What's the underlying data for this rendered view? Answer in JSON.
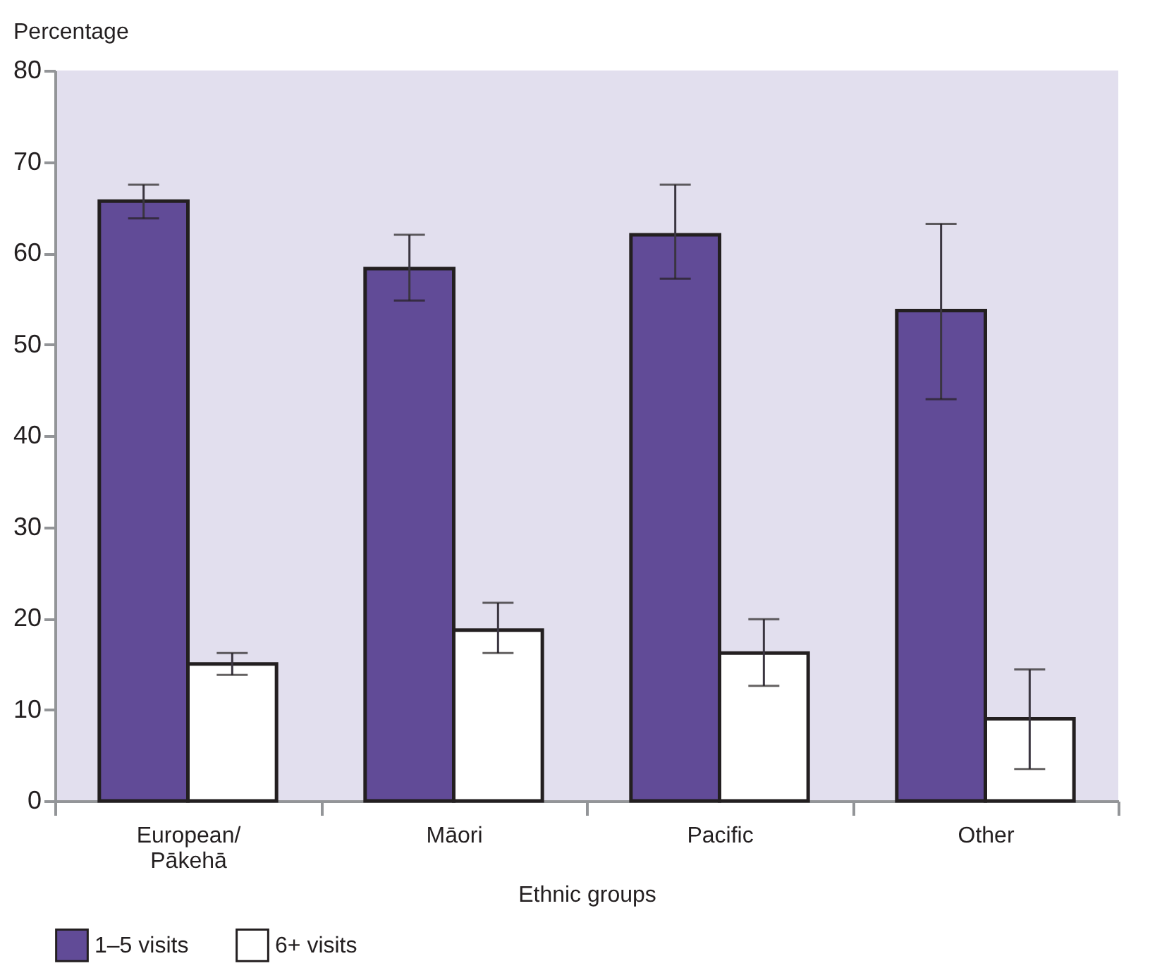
{
  "chart_data": {
    "type": "bar",
    "ylabel": "Percentage",
    "xlabel": "Ethnic groups",
    "categories": [
      "European/\nPākehā",
      "Māori",
      "Pacific",
      "Other"
    ],
    "series": [
      {
        "name": "1–5 visits",
        "color": "#614b97",
        "values": [
          65.7,
          58.3,
          62,
          53.7
        ],
        "errors": [
          [
            63.8,
            67.5
          ],
          [
            54.8,
            62
          ],
          [
            57.2,
            67.5
          ],
          [
            44,
            63.2
          ]
        ]
      },
      {
        "name": "6+ visits",
        "color": "#ffffff",
        "values": [
          15,
          18.7,
          16.2,
          9
        ],
        "errors": [
          [
            13.8,
            16.2
          ],
          [
            16.2,
            21.7
          ],
          [
            12.6,
            19.9
          ],
          [
            3.5,
            14.4
          ]
        ]
      }
    ],
    "ylim": [
      0,
      80
    ],
    "yticks": [
      0,
      10,
      20,
      30,
      40,
      50,
      60,
      70,
      80
    ],
    "grid": false,
    "legend": "bottom left"
  }
}
